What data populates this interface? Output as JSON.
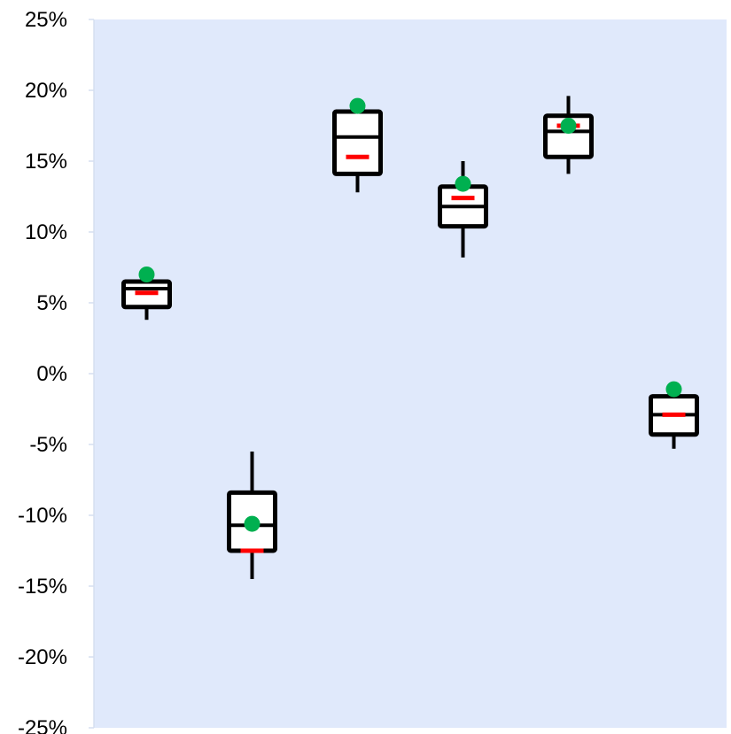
{
  "chart_data": {
    "type": "box",
    "title": "",
    "xlabel": "",
    "ylabel": "",
    "ylim": [
      -25,
      25
    ],
    "y_tick_values": [
      25,
      20,
      15,
      10,
      5,
      0,
      -5,
      -10,
      -15,
      -20,
      -25
    ],
    "y_tick_labels": [
      "25%",
      "20%",
      "15%",
      "10%",
      "5%",
      "0%",
      "-5%",
      "-10%",
      "-15%",
      "-20%",
      "-25%"
    ],
    "grid": false,
    "legend": "none",
    "boxes": [
      {
        "whisker_low": 3.8,
        "q1": 4.7,
        "median": 6.0,
        "q3": 6.5,
        "whisker_high": 6.5,
        "mean": 5.7,
        "marker": 7.0
      },
      {
        "whisker_low": -14.5,
        "q1": -12.5,
        "median": -10.7,
        "q3": -8.4,
        "whisker_high": -5.5,
        "mean": -12.5,
        "marker": -10.6
      },
      {
        "whisker_low": 12.8,
        "q1": 14.1,
        "median": 16.7,
        "q3": 18.5,
        "whisker_high": 18.5,
        "mean": 15.3,
        "marker": 18.9
      },
      {
        "whisker_low": 8.2,
        "q1": 10.4,
        "median": 11.8,
        "q3": 13.2,
        "whisker_high": 15.0,
        "mean": 12.4,
        "marker": 13.4
      },
      {
        "whisker_low": 14.1,
        "q1": 15.3,
        "median": 17.1,
        "q3": 18.2,
        "whisker_high": 19.6,
        "mean": 17.5,
        "marker": 17.5
      },
      {
        "whisker_low": -5.3,
        "q1": -4.3,
        "median": -2.9,
        "q3": -1.6,
        "whisker_high": -1.6,
        "mean": -2.9,
        "marker": -1.1
      }
    ],
    "colors": {
      "plot_background": "#e0e9fb",
      "axis_line": "#d6dff0",
      "box_stroke": "#000000",
      "box_fill": "#ffffff",
      "mean_marker": "#ff0000",
      "point_marker": "#00b050"
    }
  }
}
